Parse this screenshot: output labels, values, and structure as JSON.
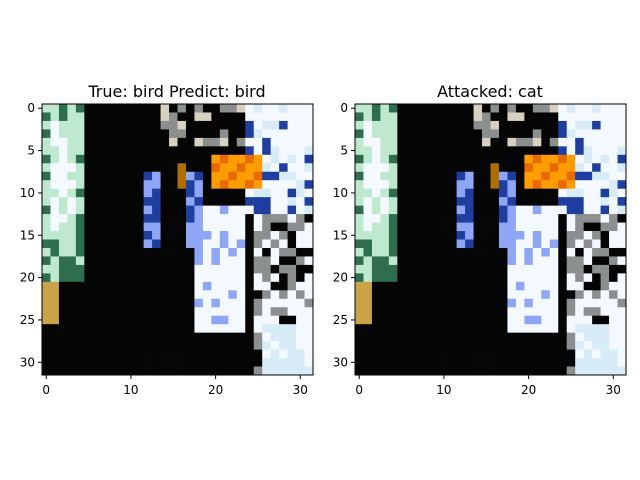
{
  "panels": [
    {
      "title": "True: bird  Predict: bird",
      "xticks": [
        "0",
        "10",
        "20",
        "30"
      ],
      "yticks": [
        "0",
        "5",
        "10",
        "15",
        "20",
        "25",
        "30"
      ]
    },
    {
      "title": "Attacked: cat",
      "xticks": [
        "0",
        "10",
        "20",
        "30"
      ],
      "yticks": [
        "0",
        "5",
        "10",
        "15",
        "20",
        "25",
        "30"
      ]
    }
  ],
  "colors": {
    "background": "#ffffff",
    "axes": "#000000",
    "dark": "#050505",
    "green": "#2e6d4e",
    "mint": "#bfe9cf",
    "white": "#f4f8ff",
    "blue": "#1e3fa0",
    "periwinkle": "#8ea6f5",
    "orange": "#ff9d00",
    "gold": "#c9a24a",
    "gray": "#8c8f90",
    "lightblue": "#d7ecf7"
  }
}
